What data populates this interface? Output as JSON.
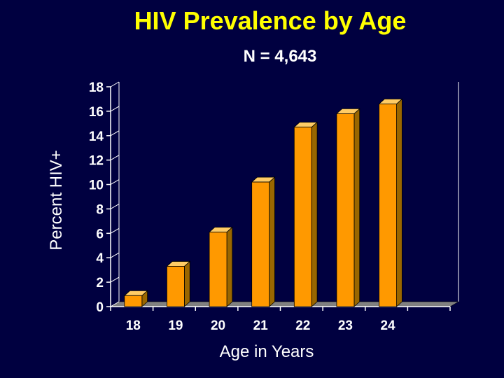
{
  "chart_data": {
    "type": "bar",
    "title": "HIV Prevalence by Age",
    "subtitle": "N = 4,643",
    "xlabel": "Age in Years",
    "ylabel": "Percent HIV+",
    "categories": [
      "18",
      "19",
      "20",
      "21",
      "22",
      "23",
      "24"
    ],
    "values": [
      0.9,
      3.3,
      6.1,
      10.2,
      14.7,
      15.8,
      16.6
    ],
    "ylim": [
      0,
      18
    ],
    "yticks": [
      "0",
      "2",
      "4",
      "6",
      "8",
      "10",
      "12",
      "14",
      "16",
      "18"
    ],
    "grid": false,
    "legend": "none",
    "colors": {
      "background": "#000040",
      "bar_front": "#ff9900",
      "bar_side": "#996600",
      "bar_top": "#ffcc66",
      "title": "#ffff00",
      "text": "#ffffff",
      "axis": "#ffffff"
    }
  }
}
